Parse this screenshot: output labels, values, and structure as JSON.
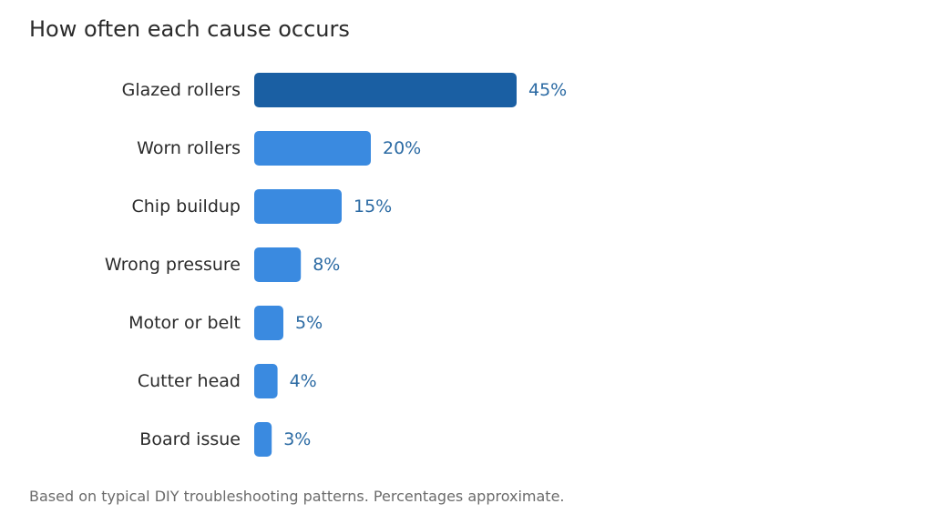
{
  "chart_data": {
    "type": "bar",
    "orientation": "horizontal",
    "title": "How often each cause occurs",
    "xlabel": "",
    "ylabel": "",
    "xlim": [
      0,
      45
    ],
    "grid": false,
    "value_suffix": "%",
    "categories": [
      "Glazed rollers",
      "Worn rollers",
      "Chip buildup",
      "Wrong pressure",
      "Motor or belt",
      "Cutter head",
      "Board issue"
    ],
    "values": [
      45,
      20,
      15,
      8,
      5,
      4,
      3
    ],
    "value_labels": [
      "45%",
      "20%",
      "15%",
      "8%",
      "5%",
      "4%",
      "3%"
    ],
    "colors": {
      "highlight_bar": "#1a5fa3",
      "bar": "#3a8ae0",
      "value_label": "#2b6aa3",
      "category_label": "#2b2b2b"
    },
    "highlight_index": 0,
    "footnote": "Based on typical DIY troubleshooting patterns. Percentages approximate."
  }
}
